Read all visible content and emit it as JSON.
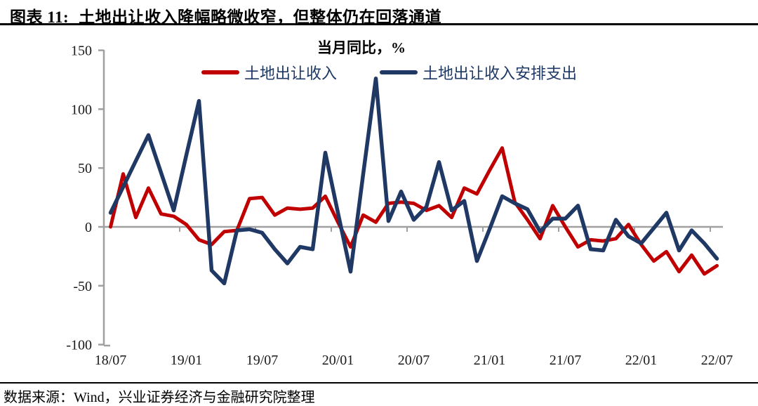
{
  "header": {
    "figure_label": "图表 11:",
    "figure_title": "土地出让收入降幅略微收窄，但整体仍在回落通道"
  },
  "footer": {
    "source": "数据来源：Wind，兴业证券经济与金融研究院整理"
  },
  "colors": {
    "revenue_line": "#c00000",
    "expenditure_line": "#1f3864",
    "axis": "#a0a0a0",
    "rule": "#000000",
    "tick_label": "#1a1a1a",
    "legend_text": "#1f3864"
  },
  "chart_data": {
    "type": "line",
    "title": "当月同比，%",
    "grid": false,
    "legend_position": "top",
    "ylim": [
      -100,
      150
    ],
    "y_ticks": [
      150,
      100,
      50,
      0,
      -50,
      -100
    ],
    "x_tick_labels": [
      "18/07",
      "19/01",
      "19/07",
      "20/01",
      "20/07",
      "21/01",
      "21/07",
      "22/01",
      "22/07"
    ],
    "x": [
      "18/07",
      "18/08",
      "18/09",
      "18/10",
      "18/11",
      "18/12",
      "19/01",
      "19/02",
      "19/03",
      "19/04",
      "19/05",
      "19/06",
      "19/07",
      "19/08",
      "19/09",
      "19/10",
      "19/11",
      "19/12",
      "20/01",
      "20/02",
      "20/03",
      "20/04",
      "20/05",
      "20/06",
      "20/07",
      "20/08",
      "20/09",
      "20/10",
      "20/11",
      "20/12",
      "21/01",
      "21/02",
      "21/03",
      "21/04",
      "21/05",
      "21/06",
      "21/07",
      "21/08",
      "21/09",
      "21/10",
      "21/11",
      "21/12",
      "22/01",
      "22/02",
      "22/03",
      "22/04",
      "22/05",
      "22/06",
      "22/07"
    ],
    "series": [
      {
        "name": "土地出让收入",
        "color": "#c00000",
        "values": [
          0,
          45,
          8,
          33,
          11,
          9,
          2,
          -11,
          -15,
          -4,
          -3,
          24,
          25,
          10,
          16,
          15,
          16,
          26,
          4,
          -17,
          10,
          4,
          20,
          21,
          20,
          14,
          18,
          8,
          33,
          28,
          48,
          67,
          21,
          6,
          -10,
          18,
          0,
          -17,
          -11,
          -12,
          -10,
          2,
          -15,
          -29,
          -21,
          -38,
          -24,
          -40,
          -33
        ]
      },
      {
        "name": "土地出让收入安排支出",
        "color": "#1f3864",
        "values": [
          12,
          34,
          56,
          78,
          46,
          14,
          61,
          107,
          -37,
          -48,
          -3,
          -2,
          -5,
          -19,
          -31,
          -17,
          -19,
          63,
          12,
          -38,
          45,
          126,
          5,
          30,
          6,
          17,
          55,
          14,
          22,
          -29,
          -2,
          26,
          20,
          15,
          -4,
          7,
          7,
          18,
          -19,
          -20,
          6,
          -8,
          -14,
          -1,
          12,
          -20,
          -3,
          -14,
          -27
        ]
      }
    ]
  }
}
